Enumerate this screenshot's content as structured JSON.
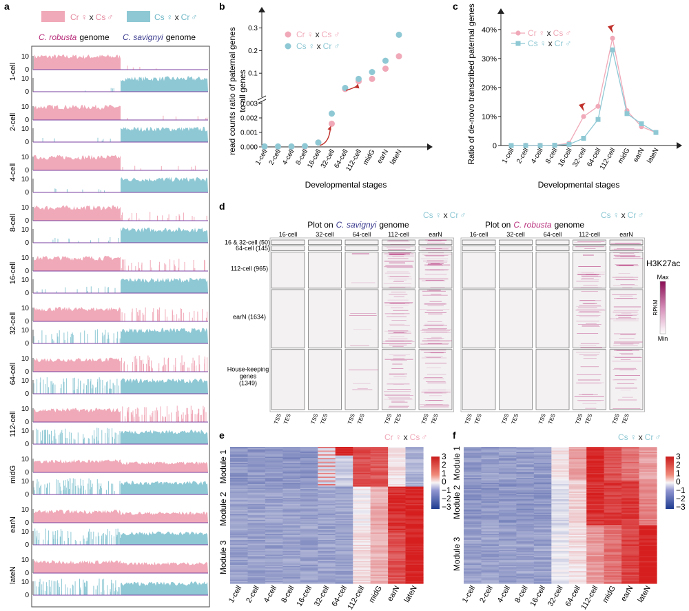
{
  "panels": {
    "a": "a",
    "b": "b",
    "c": "c",
    "d": "d",
    "e": "e",
    "f": "f"
  },
  "colors": {
    "pink": "#f0a9b8",
    "blue": "#8ec8d4",
    "pink_dark": "#e58aa0",
    "blue_dark": "#6fb7c7",
    "magenta": "#b8307c",
    "arrow": "#c0302a"
  },
  "cross_labels": {
    "cr_x_cs": {
      "p1": "Cr",
      "sym1": "♀",
      "x": "x",
      "p2": "Cs",
      "sym2": "♂"
    },
    "cs_x_cr": {
      "p1": "Cs",
      "sym1": "♀",
      "x": "x",
      "p2": "Cr",
      "sym2": "♂"
    }
  },
  "panel_a": {
    "genome_left": {
      "species": "C. robusta",
      "word": "genome"
    },
    "genome_right": {
      "species": "C. savignyi",
      "word": "genome"
    },
    "tick_hi": "10",
    "tick_lo": "0",
    "stages": [
      "1-cell",
      "2-cell",
      "4-cell",
      "8-cell",
      "16-cell",
      "32-cell",
      "64-cell",
      "112-cell",
      "midG",
      "earN",
      "lateN"
    ],
    "pink_in_cr": [
      0.85,
      0.85,
      0.85,
      0.85,
      0.85,
      0.8,
      0.78,
      0.78,
      0.72,
      0.72,
      0.72
    ],
    "pink_in_cs": [
      0.02,
      0.03,
      0.05,
      0.15,
      0.25,
      0.3,
      0.45,
      0.55,
      0.6,
      0.62,
      0.62
    ],
    "blue_in_cr": [
      0.02,
      0.03,
      0.05,
      0.08,
      0.1,
      0.3,
      0.5,
      0.5,
      0.55,
      0.58,
      0.58
    ],
    "blue_in_cs": [
      0.85,
      0.85,
      0.85,
      0.85,
      0.85,
      0.85,
      0.85,
      0.8,
      0.75,
      0.75,
      0.75
    ]
  },
  "chart_data": [
    {
      "type": "scatter",
      "panel": "b",
      "ylabel": "read counts ratio of paternal genes to all genes",
      "xlabel": "Developmental stages",
      "categories": [
        "1-cell",
        "2-cell",
        "4-cell",
        "8-cell",
        "16-cell",
        "32-cell",
        "64-cell",
        "112-cell",
        "midG",
        "earN",
        "lateN"
      ],
      "ytick_lower": [
        "0.000",
        "0.001",
        "0.002",
        "0.003"
      ],
      "ytick_upper": [
        "0.1",
        "0.2",
        "0.3"
      ],
      "ylim_lower": [
        0,
        0.003
      ],
      "ylim_upper": [
        0.003,
        0.32
      ],
      "series": [
        {
          "name": "Cr ♀ x Cs ♂",
          "values": [
            2e-05,
            2e-05,
            2e-05,
            3e-05,
            0.0003,
            0.0016,
            0.03,
            0.065,
            0.075,
            0.12,
            0.175
          ]
        },
        {
          "name": "Cs ♀ x Cr ♂",
          "values": [
            3e-05,
            3e-05,
            3e-05,
            5e-05,
            0.0003,
            0.0023,
            0.035,
            0.075,
            0.105,
            0.155,
            0.27
          ]
        }
      ]
    },
    {
      "type": "line",
      "panel": "c",
      "ylabel": "Ratio of de-novo transcribed paternal genes",
      "xlabel": "Developmental stages",
      "categories": [
        "1-cell",
        "2-cell",
        "4-cell",
        "8-cell",
        "16-cell",
        "32-cell",
        "64-cell",
        "112-cell",
        "midG",
        "earN",
        "lateN"
      ],
      "yticks": [
        "0",
        "10%",
        "20%",
        "30%",
        "40%"
      ],
      "ylim": [
        0,
        44
      ],
      "series": [
        {
          "name": "Cr ♀ x Cs ♂",
          "values": [
            0,
            0.1,
            0.1,
            0.1,
            0.8,
            10,
            13.5,
            37,
            12,
            6.5,
            4.5
          ]
        },
        {
          "name": "Cs ♀ x Cr ♂",
          "values": [
            0,
            0,
            0,
            0.1,
            0.4,
            2.5,
            9,
            33,
            11,
            7.5,
            4.5
          ]
        }
      ]
    },
    {
      "type": "heatmap",
      "panel": "d",
      "left_title": {
        "prefix": "Plot on",
        "species": "C. savignyi",
        "suffix": "genome"
      },
      "right_title": {
        "prefix": "Plot on",
        "species": "C. robusta",
        "suffix": "genome"
      },
      "columns": [
        "16-cell",
        "32-cell",
        "64-cell",
        "112-cell",
        "earN"
      ],
      "rows": [
        {
          "label": "16 & 32-cell (50)",
          "frac": 0.035
        },
        {
          "label": "64-cell (145)",
          "frac": 0.035
        },
        {
          "label": "112-cell (965)",
          "frac": 0.22
        },
        {
          "label": "earN (1634)",
          "frac": 0.35
        },
        {
          "label": "House-keeping genes (1349)",
          "frac": 0.36
        }
      ],
      "intensity_left": [
        [
          0,
          0,
          0.05,
          0.55,
          0.6
        ],
        [
          0,
          0,
          0.05,
          0.55,
          0.6
        ],
        [
          0,
          0,
          0.05,
          0.5,
          0.55
        ],
        [
          0,
          0,
          0.05,
          0.4,
          0.45
        ],
        [
          0,
          0,
          0.05,
          0.3,
          0.35
        ]
      ],
      "intensity_right": [
        [
          0,
          0,
          0.02,
          0.4,
          0.45
        ],
        [
          0,
          0,
          0.02,
          0.4,
          0.45
        ],
        [
          0,
          0,
          0.02,
          0.35,
          0.4
        ],
        [
          0,
          0,
          0.02,
          0.3,
          0.3
        ],
        [
          0,
          0,
          0.02,
          0.22,
          0.25
        ]
      ],
      "tss": "TSS",
      "tes": "TES",
      "mark": "H3K27ac",
      "scale_max": "Max",
      "scale_min": "Min",
      "scale_unit": "RPKM"
    },
    {
      "type": "heatmap",
      "panel": "e",
      "categories": [
        "1-cell",
        "2-cell",
        "4-cell",
        "8-cell",
        "16-cell",
        "32-cell",
        "64-cell",
        "112-cell",
        "midG",
        "earN",
        "lateN"
      ],
      "modules": [
        "Module 1",
        "Module 2",
        "Module 3"
      ],
      "module_bounds": [
        0,
        0.29,
        0.62,
        1.0
      ],
      "scale_ticks": [
        "3",
        "2",
        "1",
        "0",
        "−1",
        "−2",
        "−3"
      ],
      "zlim": [
        -3,
        3
      ]
    },
    {
      "type": "heatmap",
      "panel": "f",
      "categories": [
        "1-cell",
        "2-cell",
        "4-cell",
        "8-cell",
        "16-cell",
        "32-cell",
        "64-cell",
        "112-cell",
        "midG",
        "earN",
        "lateN"
      ],
      "modules": [
        "Module 1",
        "Module 2",
        "Module 3"
      ],
      "module_bounds": [
        0,
        0.24,
        0.57,
        1.0
      ],
      "scale_ticks": [
        "3",
        "2",
        "1",
        "0",
        "−1",
        "−2",
        "−3"
      ],
      "zlim": [
        -3,
        3
      ]
    }
  ]
}
